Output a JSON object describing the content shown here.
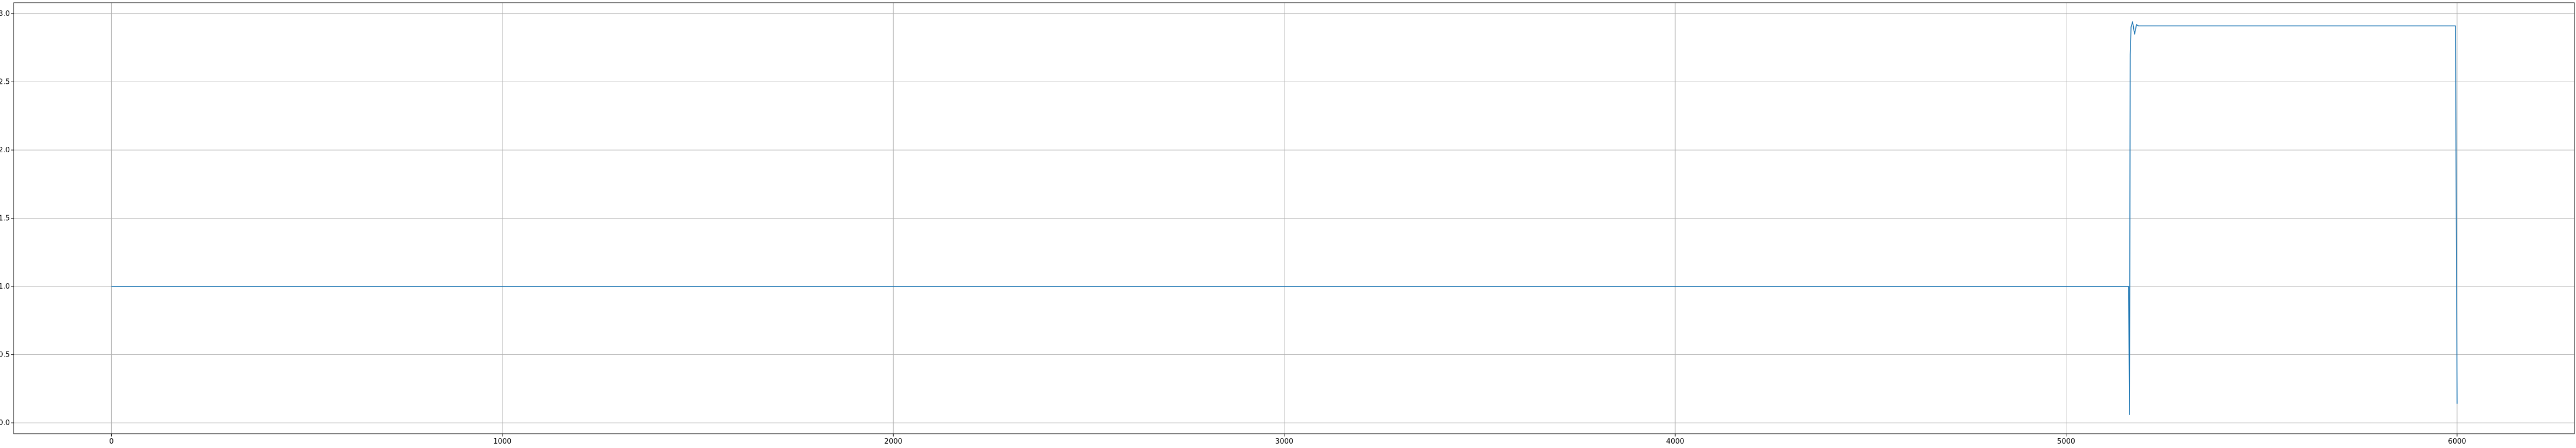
{
  "chart_data": {
    "type": "line",
    "title": "",
    "xlabel": "",
    "ylabel": "",
    "xlim": [
      -250,
      6300
    ],
    "ylim": [
      -0.08,
      3.08
    ],
    "grid": true,
    "xticks": [
      0,
      1000,
      2000,
      3000,
      4000,
      5000,
      6000
    ],
    "xtick_labels": [
      "0",
      "1000",
      "2000",
      "3000",
      "4000",
      "5000",
      "6000"
    ],
    "yticks": [
      0.0,
      0.5,
      1.0,
      1.5,
      2.0,
      2.5,
      3.0
    ],
    "ytick_labels": [
      "0.0",
      "0.5",
      "1.0",
      "1.5",
      "2.0",
      "2.5",
      "3.0"
    ],
    "colors": {
      "series": "#1f77b4",
      "grid": "#b0b0b0",
      "axes": "#000000"
    },
    "series": [
      {
        "x": [
          0,
          5160,
          5162,
          5164,
          5166,
          5170,
          5175,
          5180,
          5185,
          5190,
          5200,
          5400,
          5600,
          5800,
          5996,
          5998,
          6000
        ],
        "y": [
          1.0,
          1.0,
          0.06,
          2.7,
          2.9,
          2.94,
          2.85,
          2.92,
          2.91,
          2.91,
          2.91,
          2.91,
          2.91,
          2.91,
          2.91,
          1.5,
          0.14
        ]
      }
    ]
  }
}
